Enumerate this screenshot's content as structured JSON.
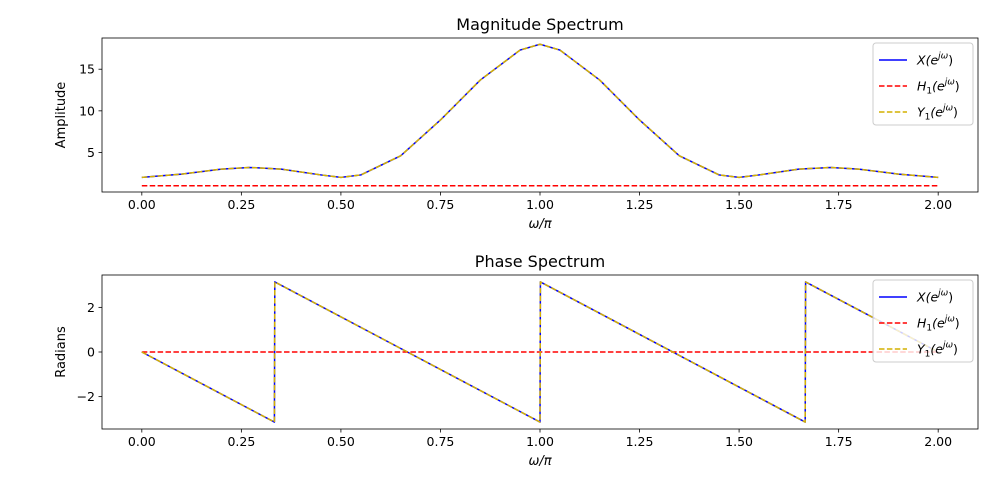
{
  "chart_data": [
    {
      "type": "line",
      "title": "Magnitude Spectrum",
      "xlabel": "ω/π",
      "ylabel": "Amplitude",
      "xlim": [
        -0.1,
        2.1
      ],
      "ylim": [
        0.25,
        18.75
      ],
      "xticks": [
        0.0,
        0.25,
        0.5,
        0.75,
        1.0,
        1.25,
        1.5,
        1.75,
        2.0
      ],
      "xtick_labels": [
        "0.00",
        "0.25",
        "0.50",
        "0.75",
        "1.00",
        "1.25",
        "1.50",
        "1.75",
        "2.00"
      ],
      "yticks": [
        5,
        10,
        15
      ],
      "ytick_labels": [
        "5",
        "10",
        "15"
      ],
      "legend_position": "top-right",
      "grid": false,
      "series": [
        {
          "name": "X(e^{jω})",
          "legend": {
            "base": "X(e",
            "sup": "jω",
            "close": ")"
          },
          "color": "#0000ff",
          "style": "solid",
          "x": [
            0.0,
            0.1,
            0.2,
            0.27,
            0.35,
            0.45,
            0.5,
            0.55,
            0.65,
            0.75,
            0.85,
            0.95,
            1.0,
            1.05,
            1.15,
            1.25,
            1.35,
            1.45,
            1.5,
            1.55,
            1.65,
            1.73,
            1.8,
            1.9,
            2.0
          ],
          "y": [
            2.0,
            2.4,
            3.0,
            3.2,
            3.0,
            2.3,
            2.0,
            2.3,
            4.6,
            8.9,
            13.7,
            17.3,
            18.0,
            17.3,
            13.7,
            8.9,
            4.6,
            2.3,
            2.0,
            2.3,
            3.0,
            3.2,
            3.0,
            2.4,
            2.0
          ]
        },
        {
          "name": "H₁(e^{jω})",
          "legend": {
            "base": "H",
            "sub": "1",
            "mid": "(e",
            "sup": "jω",
            "close": ")"
          },
          "color": "#ff0000",
          "style": "dashed",
          "x": [
            0.0,
            2.0
          ],
          "y": [
            1.0,
            1.0
          ]
        },
        {
          "name": "Y₁(e^{jω})",
          "legend": {
            "base": "Y",
            "sub": "1",
            "mid": "(e",
            "sup": "jω",
            "close": ")"
          },
          "color": "#d4b000",
          "style": "dashed",
          "x": [
            0.0,
            0.1,
            0.2,
            0.27,
            0.35,
            0.45,
            0.5,
            0.55,
            0.65,
            0.75,
            0.85,
            0.95,
            1.0,
            1.05,
            1.15,
            1.25,
            1.35,
            1.45,
            1.5,
            1.55,
            1.65,
            1.73,
            1.8,
            1.9,
            2.0
          ],
          "y": [
            2.0,
            2.4,
            3.0,
            3.2,
            3.0,
            2.3,
            2.0,
            2.3,
            4.6,
            8.9,
            13.7,
            17.3,
            18.0,
            17.3,
            13.7,
            8.9,
            4.6,
            2.3,
            2.0,
            2.3,
            3.0,
            3.2,
            3.0,
            2.4,
            2.0
          ]
        }
      ]
    },
    {
      "type": "line",
      "title": "Phase Spectrum",
      "xlabel": "ω/π",
      "ylabel": "Radians",
      "xlim": [
        -0.1,
        2.1
      ],
      "ylim": [
        -3.45,
        3.45
      ],
      "xticks": [
        0.0,
        0.25,
        0.5,
        0.75,
        1.0,
        1.25,
        1.5,
        1.75,
        2.0
      ],
      "xtick_labels": [
        "0.00",
        "0.25",
        "0.50",
        "0.75",
        "1.00",
        "1.25",
        "1.50",
        "1.75",
        "2.00"
      ],
      "yticks": [
        -2,
        0,
        2
      ],
      "ytick_labels": [
        "−2",
        "0",
        "2"
      ],
      "legend_position": "top-right",
      "grid": false,
      "series": [
        {
          "name": "X(e^{jω})",
          "legend": {
            "base": "X(e",
            "sup": "jω",
            "close": ")"
          },
          "color": "#0000ff",
          "style": "solid",
          "x": [
            0.0,
            0.333,
            0.334,
            1.0,
            1.001,
            1.666,
            1.667,
            2.0
          ],
          "y": [
            0.0,
            -3.14,
            3.14,
            -3.14,
            3.14,
            -3.14,
            3.14,
            0.0
          ]
        },
        {
          "name": "H₁(e^{jω})",
          "legend": {
            "base": "H",
            "sub": "1",
            "mid": "(e",
            "sup": "jω",
            "close": ")"
          },
          "color": "#ff0000",
          "style": "dashed",
          "x": [
            0.0,
            2.0
          ],
          "y": [
            0.0,
            0.0
          ]
        },
        {
          "name": "Y₁(e^{jω})",
          "legend": {
            "base": "Y",
            "sub": "1",
            "mid": "(e",
            "sup": "jω",
            "close": ")"
          },
          "color": "#d4b000",
          "style": "dashed",
          "x": [
            0.0,
            0.333,
            0.334,
            1.0,
            1.001,
            1.666,
            1.667,
            2.0
          ],
          "y": [
            0.0,
            -3.14,
            3.14,
            -3.14,
            3.14,
            -3.14,
            3.14,
            0.0
          ]
        }
      ]
    }
  ]
}
